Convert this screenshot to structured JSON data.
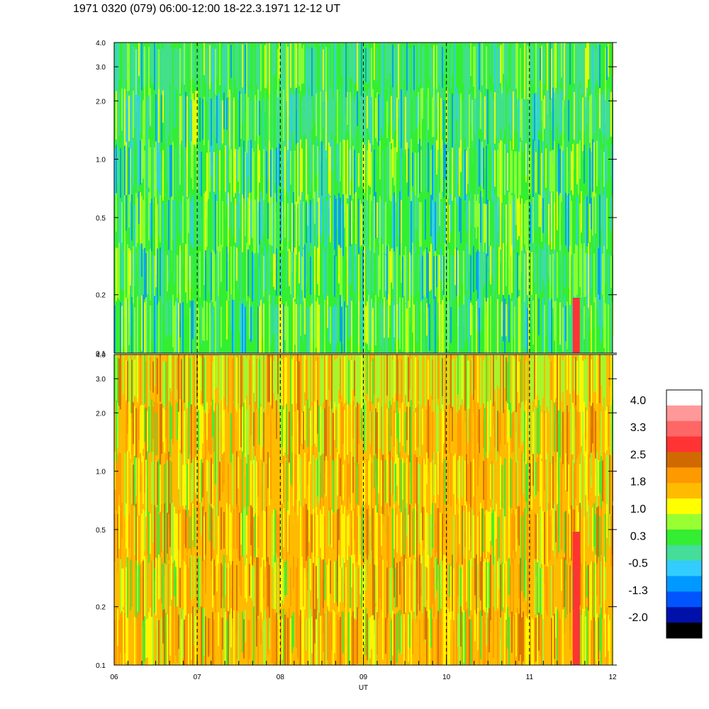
{
  "title": "1971 0320 (079) 06:00-12:00 18-22.3.1971  12-12 UT",
  "chart_data": [
    {
      "type": "heatmap",
      "panel": "upper",
      "x_ticks": [
        "06",
        "07",
        "08",
        "09",
        "10",
        "11",
        "12"
      ],
      "x_range": [
        6,
        12
      ],
      "y_scale": "log",
      "y_range": [
        0.1,
        4.0
      ],
      "y_ticks": [
        "0.1",
        "0.2",
        "0.5",
        "1.0",
        "2.0",
        "3.0",
        "4.0"
      ],
      "dominant_level": "0.3 to 1.0 (green), lower values toward top",
      "hour_markers": [
        "07",
        "08",
        "09",
        "10",
        "11"
      ]
    },
    {
      "type": "heatmap",
      "panel": "lower",
      "x_ticks": [
        "06",
        "07",
        "08",
        "09",
        "10",
        "11",
        "12"
      ],
      "x_range": [
        6,
        12
      ],
      "y_scale": "log",
      "y_range": [
        0.1,
        4.0
      ],
      "y_ticks": [
        "0.1",
        "0.2",
        "0.5",
        "1.0",
        "2.0",
        "3.0",
        "4.0"
      ],
      "xlabel": "UT",
      "dominant_level": "1.0 to 1.8 (yellow/orange)",
      "hour_markers": [
        "07",
        "08",
        "09",
        "10",
        "11"
      ]
    }
  ],
  "colorbar": {
    "labels": [
      "4.0",
      "3.3",
      "2.5",
      "1.8",
      "1.0",
      "0.3",
      "-0.5",
      "-1.3",
      "-2.0"
    ],
    "colors": [
      "#ffffff",
      "#ff9999",
      "#ff6666",
      "#ff3333",
      "#d06a00",
      "#ff9900",
      "#ffbb00",
      "#ffff00",
      "#99ff33",
      "#33ee33",
      "#44dd99",
      "#33ccff",
      "#0099ff",
      "#0055ff",
      "#0011aa",
      "#000000"
    ]
  }
}
